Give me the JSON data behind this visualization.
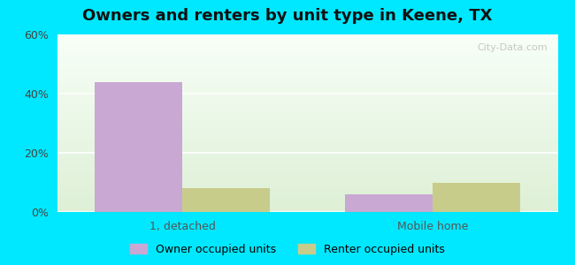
{
  "title": "Owners and renters by unit type in Keene, TX",
  "categories": [
    "1, detached",
    "Mobile home"
  ],
  "owner_values": [
    44.0,
    6.0
  ],
  "renter_values": [
    8.0,
    10.0
  ],
  "owner_color": "#c9a8d4",
  "renter_color": "#c8cc8a",
  "ylim": [
    0,
    60
  ],
  "yticks": [
    0,
    20,
    40,
    60
  ],
  "ytick_labels": [
    "0%",
    "20%",
    "40%",
    "60%"
  ],
  "bar_width": 0.35,
  "background_outer": "#00e8ff",
  "legend_labels": [
    "Owner occupied units",
    "Renter occupied units"
  ],
  "watermark": "City-Data.com"
}
